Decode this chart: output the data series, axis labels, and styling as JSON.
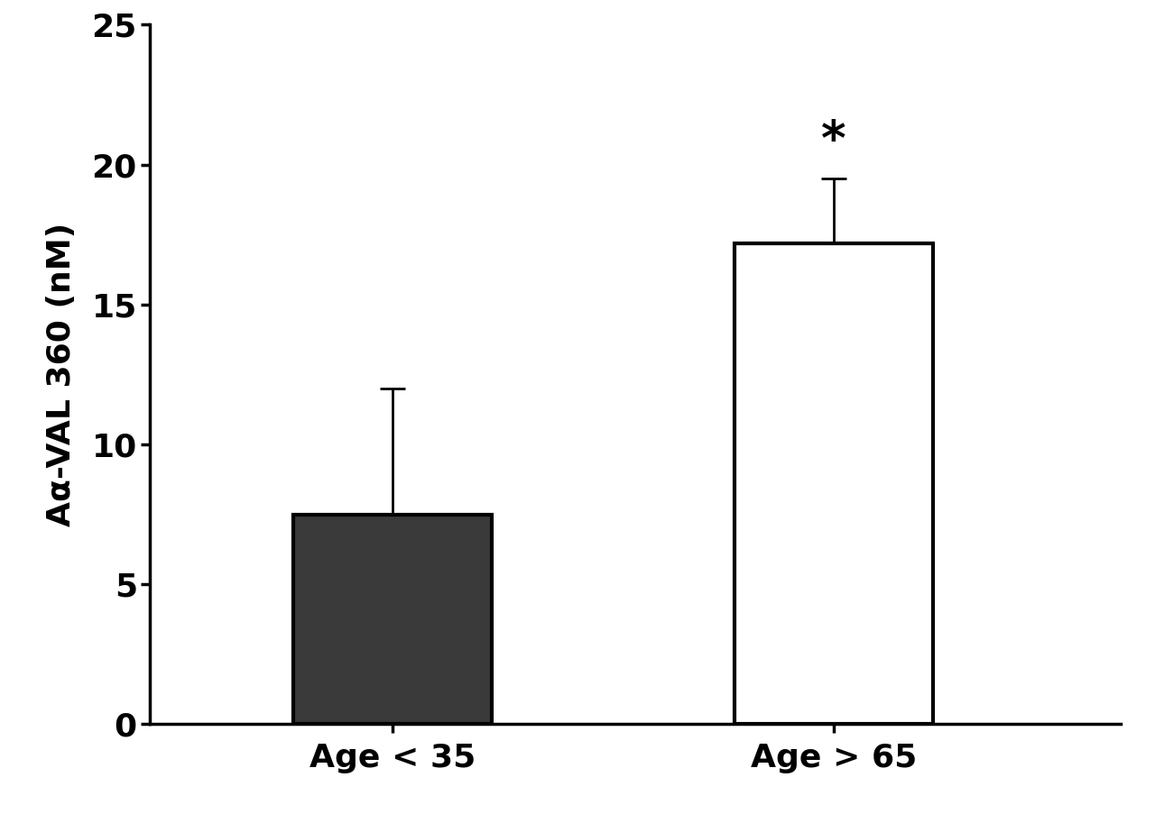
{
  "categories": [
    "Age < 35",
    "Age > 65"
  ],
  "values": [
    7.5,
    17.2
  ],
  "errors_upper": [
    4.5,
    2.3
  ],
  "bar_colors": [
    "#3a3a3a",
    "#ffffff"
  ],
  "bar_edge_colors": [
    "#000000",
    "#000000"
  ],
  "bar_width": 0.45,
  "bar_positions": [
    1.0,
    2.0
  ],
  "ylabel": "Aα-VAL 360 (nM)",
  "ylim": [
    0,
    25
  ],
  "yticks": [
    0,
    5,
    10,
    15,
    20,
    25
  ],
  "significance_label": "*",
  "significance_bar_index": 1,
  "background_color": "#ffffff",
  "tick_fontsize": 26,
  "label_fontsize": 26,
  "significance_fontsize": 38,
  "bar_linewidth": 3.0,
  "error_linewidth": 2.0,
  "error_capsize": 10,
  "axis_linewidth": 2.5,
  "xlim": [
    0.45,
    2.65
  ]
}
